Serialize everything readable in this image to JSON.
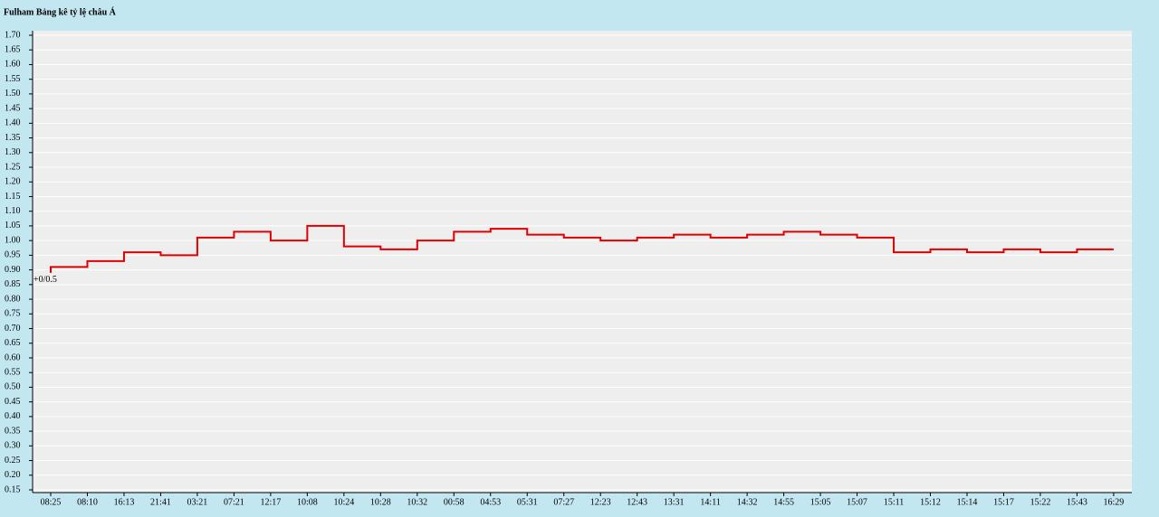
{
  "chart_data": {
    "type": "step-line",
    "title": "Fulham Bảng kê tỷ lệ châu Á",
    "annotation": "+0/0.5",
    "categories": [
      "08:25",
      "08:10",
      "16:13",
      "21:41",
      "03:21",
      "07:21",
      "12:17",
      "10:08",
      "10:24",
      "10:28",
      "10:32",
      "00:58",
      "04:53",
      "05:31",
      "07:27",
      "12:23",
      "12:43",
      "13:31",
      "14:11",
      "14:32",
      "14:55",
      "15:05",
      "15:07",
      "15:11",
      "15:12",
      "15:14",
      "15:17",
      "15:22",
      "15:43",
      "16:29"
    ],
    "values": [
      0.89,
      0.91,
      0.93,
      0.96,
      0.95,
      1.01,
      1.03,
      1.0,
      1.05,
      0.98,
      0.97,
      1.0,
      1.03,
      1.04,
      1.02,
      1.01,
      1.0,
      1.01,
      1.02,
      1.01,
      1.02,
      1.03,
      1.02,
      1.01,
      0.96,
      0.97,
      0.96,
      0.97,
      0.96,
      0.97
    ],
    "color": "#e00000",
    "ylim": [
      0.15,
      1.7
    ],
    "yticks": [
      {
        "value": 1.7,
        "label": "1.70"
      },
      1.65,
      {
        "value": 1.6,
        "label": "1.60"
      },
      1.55,
      {
        "value": 1.5,
        "label": "1.50"
      },
      1.45,
      {
        "value": 1.4,
        "label": "1.40"
      },
      1.35,
      {
        "value": 1.3,
        "label": "1.30"
      },
      1.25,
      {
        "value": 1.2,
        "label": "1.20"
      },
      1.15,
      {
        "value": 1.1,
        "label": "1.10"
      },
      1.05,
      {
        "value": 1.0,
        "label": "1.00"
      },
      0.95,
      {
        "value": 0.9,
        "label": "0.90"
      },
      0.85,
      {
        "value": 0.8,
        "label": "0.80"
      },
      0.75,
      {
        "value": 0.7,
        "label": "0.70"
      },
      0.65,
      {
        "value": 0.6,
        "label": "0.60"
      },
      0.55,
      {
        "value": 0.5,
        "label": "0.50"
      },
      0.45,
      {
        "value": 0.4,
        "label": "0.40"
      },
      0.35,
      {
        "value": 0.3,
        "label": "0.30"
      },
      0.25,
      {
        "value": 0.2,
        "label": "0.20"
      },
      0.15
    ],
    "grid": true
  }
}
